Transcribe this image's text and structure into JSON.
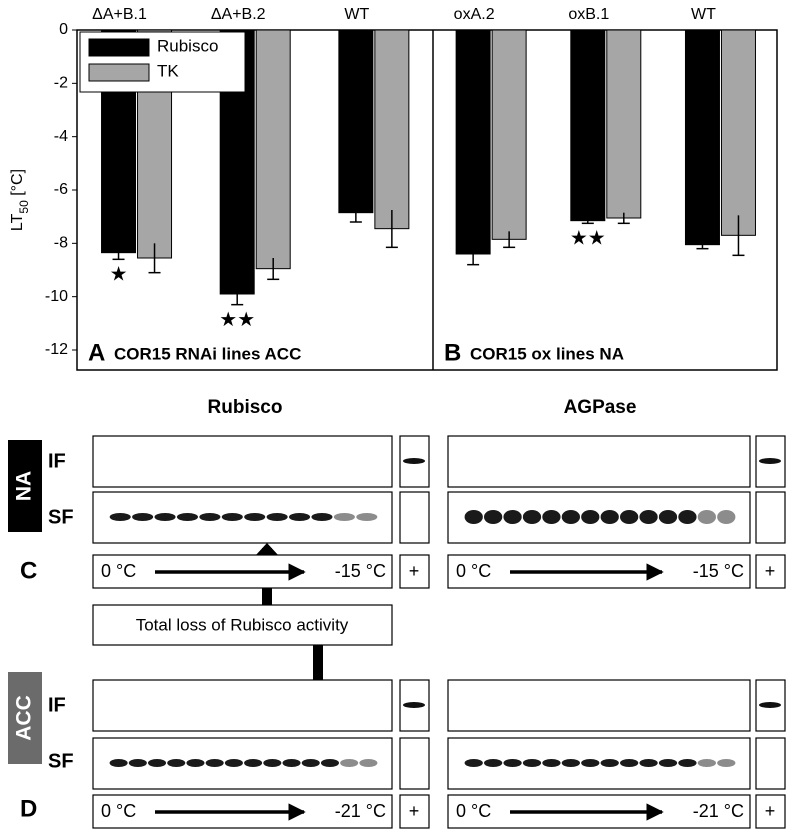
{
  "chart_data": [
    {
      "type": "bar",
      "panel": "A",
      "title": "COR15 RNAi lines ACC",
      "y_label": [
        "LT",
        "50",
        " [°C]"
      ],
      "categories": [
        "ΔA+B.1",
        "ΔA+B.2",
        "WT"
      ],
      "series": [
        {
          "name": "Rubisco",
          "color": "#000000",
          "values": [
            -8.35,
            -9.9,
            -6.85
          ],
          "errors": [
            0.25,
            0.4,
            0.35
          ]
        },
        {
          "name": "TK",
          "color": "#a6a6a6",
          "values": [
            -8.55,
            -8.95,
            -7.45
          ],
          "errors": [
            0.55,
            0.4,
            0.7
          ]
        }
      ],
      "significance": [
        "★",
        "★★",
        null
      ],
      "ylim": [
        -12.75,
        0
      ],
      "yticks": [
        0,
        -2,
        -4,
        -6,
        -8,
        -10,
        -12
      ],
      "legend": "upper left"
    },
    {
      "type": "bar",
      "panel": "B",
      "title": "COR15 ox lines NA",
      "categories": [
        "oxA.2",
        "oxB.1",
        "WT"
      ],
      "series": [
        {
          "color": "#000000",
          "values": [
            -8.4,
            -7.15,
            -8.05
          ],
          "errors": [
            0.4,
            0.1,
            0.15
          ]
        },
        {
          "color": "#a6a6a6",
          "values": [
            -7.85,
            -7.05,
            -7.7
          ],
          "errors": [
            0.3,
            0.2,
            0.75
          ]
        }
      ],
      "significance": [
        null,
        "★★",
        null
      ],
      "ylim": [
        -12.75,
        0
      ]
    }
  ],
  "blots": {
    "columns": [
      "Rubisco",
      "AGPase"
    ],
    "groups": [
      {
        "label": "NA",
        "panel": "C",
        "rows": [
          "IF",
          "SF"
        ],
        "start": "0 °C",
        "end": "-15 °C",
        "control": "+"
      },
      {
        "label": "ACC",
        "panel": "D",
        "rows": [
          "IF",
          "SF"
        ],
        "start": "0 °C",
        "end": "-21 °C",
        "control": "+"
      }
    ],
    "note": "Total loss of Rubisco activity"
  }
}
